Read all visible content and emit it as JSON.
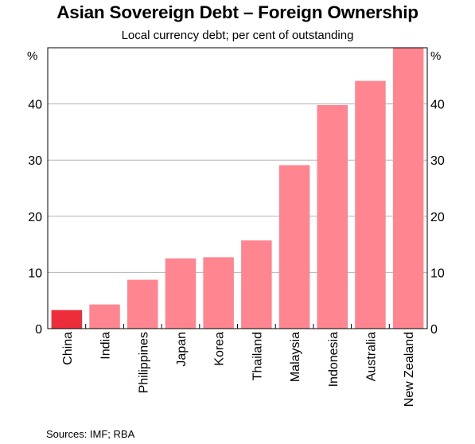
{
  "colors": {
    "highlight_bar": "#ee2d3a",
    "bar": "#ff8690",
    "grid": "#b3b3b3",
    "axis": "#000000"
  },
  "chart_data": {
    "type": "bar",
    "title": "Asian Sovereign Debt – Foreign Ownership",
    "subtitle": "Local currency debt; per cent of outstanding",
    "unit_left": "%",
    "unit_right": "%",
    "source": "Sources:   IMF; RBA",
    "categories": [
      "China",
      "India",
      "Philippines",
      "Japan",
      "Korea",
      "Thailand",
      "Malaysia",
      "Indonesia",
      "Australia",
      "New Zealand"
    ],
    "values": [
      3.3,
      4.3,
      8.7,
      12.5,
      12.7,
      15.7,
      29.1,
      39.8,
      44.1,
      50.0
    ],
    "highlighted_category": "China",
    "ylim": [
      0,
      50
    ],
    "yticks": [
      0,
      10,
      20,
      30,
      40
    ],
    "grid": true,
    "legend": "none"
  }
}
